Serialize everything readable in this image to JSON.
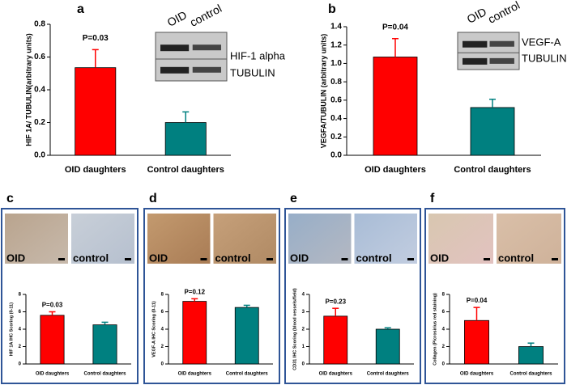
{
  "chart_data": [
    {
      "type": "bar",
      "panel": "a",
      "annotation": "P=0.03",
      "y_label": "HIF 1A/ TUBULIN(arbitrary units)",
      "categories": [
        "OID daughters",
        "Control daughters"
      ],
      "values": [
        0.535,
        0.2
      ],
      "errors": [
        0.11,
        0.065
      ],
      "colors": [
        "#ff0000",
        "#008080"
      ],
      "ylim": [
        0,
        0.8
      ],
      "yticks": [
        {
          "value": 0,
          "label": "0.0"
        },
        0.2,
        0.4,
        0.6,
        0.8
      ],
      "blot_labels": {
        "lanes": [
          "OID",
          "control"
        ],
        "proteins": [
          "HIF-1 alpha",
          "TUBULIN"
        ]
      }
    },
    {
      "type": "bar",
      "panel": "b",
      "annotation": "P=0.04",
      "y_label": "VEGFA/TUBULIN (arbitrary units)",
      "categories": [
        "OID daughters",
        "Control daughters"
      ],
      "values": [
        1.07,
        0.52
      ],
      "errors": [
        0.2,
        0.09
      ],
      "colors": [
        "#ff0000",
        "#008080"
      ],
      "ylim": [
        0,
        1.4
      ],
      "yticks": [
        {
          "value": 0,
          "label": "0.0"
        },
        0.2,
        0.4,
        0.6,
        0.8,
        {
          "value": 1,
          "label": "1.0"
        },
        1.2,
        1.4
      ],
      "blot_labels": {
        "lanes": [
          "OID",
          "control"
        ],
        "proteins": [
          "VEGF-A",
          "TUBULIN"
        ]
      }
    },
    {
      "type": "bar",
      "panel": "c",
      "annotation": "P=0.03",
      "y_label": "HIF 1A IHC Scoring (0-11)",
      "categories": [
        "OID daughters",
        "Control daughters"
      ],
      "values": [
        5.6,
        4.5
      ],
      "errors": [
        0.4,
        0.3
      ],
      "colors": [
        "#ff0000",
        "#008080"
      ],
      "ylim": [
        0,
        8
      ],
      "yticks": [
        0,
        2,
        4,
        6,
        8
      ],
      "image_labels": [
        "OID",
        "control"
      ]
    },
    {
      "type": "bar",
      "panel": "d",
      "annotation": "P=0.12",
      "y_label": "VEGF-A IHC Scoring (0-11)",
      "categories": [
        "OID daughters",
        "Control daughters"
      ],
      "values": [
        7.2,
        6.5
      ],
      "errors": [
        0.3,
        0.25
      ],
      "colors": [
        "#ff0000",
        "#008080"
      ],
      "ylim": [
        0,
        8
      ],
      "yticks": [
        0,
        2,
        4,
        6,
        8
      ],
      "image_labels": [
        "OID",
        "control"
      ]
    },
    {
      "type": "bar",
      "panel": "e",
      "annotation": "P=0.23",
      "y_label": "CD31 IHC Scoring (blood vessels/field)",
      "categories": [
        "OID daughters",
        "Control daughters"
      ],
      "values": [
        2.75,
        2.0
      ],
      "errors": [
        0.45,
        0.08
      ],
      "colors": [
        "#ff0000",
        "#008080"
      ],
      "ylim": [
        0,
        4
      ],
      "yticks": [
        0,
        1,
        2,
        3,
        4
      ],
      "image_labels": [
        "OID",
        "control"
      ]
    },
    {
      "type": "bar",
      "panel": "f",
      "annotation": "P=0.04",
      "y_label": "Collagen (Picrosirius red staining)",
      "categories": [
        "OID daughters",
        "Control daughters"
      ],
      "values": [
        5.0,
        2.0
      ],
      "errors": [
        1.5,
        0.4
      ],
      "colors": [
        "#ff0000",
        "#008080"
      ],
      "ylim": [
        0,
        8
      ],
      "yticks": [
        0,
        2,
        4,
        6,
        8
      ],
      "image_labels": [
        "OID",
        "control"
      ]
    }
  ]
}
